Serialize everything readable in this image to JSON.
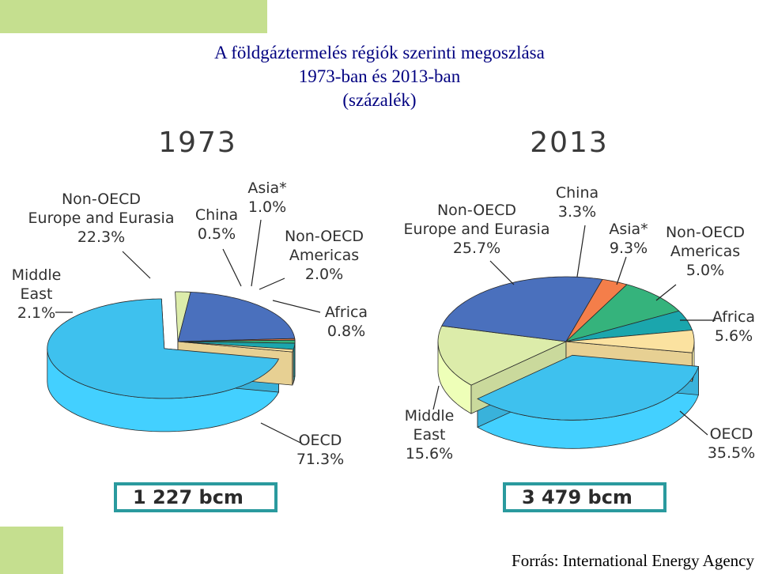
{
  "title": {
    "line1": "A földgáztermelés régiók szerinti megoszlása",
    "line2": "1973-ban és 2013-ban",
    "line3": "(százalék)"
  },
  "source": "Forrás: International Energy Agency",
  "colors": {
    "OECD": "#3ec1ee",
    "Middle East": "#dcecaa",
    "Non-OECD Europe and Eurasia": "#4a70bd",
    "China": "#f47e4a",
    "Asia*": "#35b37c",
    "Non-OECD Americas": "#1ba6ad",
    "Africa": "#fbe2a0"
  },
  "chart_data": [
    {
      "type": "pie",
      "year": "1973",
      "total": "1 227 bcm",
      "slices": [
        {
          "name": "OECD",
          "label": [
            "OECD"
          ],
          "value": 71.3,
          "value_label": "71.3%"
        },
        {
          "name": "Middle East",
          "label": [
            "Middle",
            "East"
          ],
          "value": 2.1,
          "value_label": "2.1%"
        },
        {
          "name": "Non-OECD Europe and Eurasia",
          "label": [
            "Non-OECD",
            "Europe and Eurasia"
          ],
          "value": 22.3,
          "value_label": "22.3%"
        },
        {
          "name": "China",
          "label": [
            "China"
          ],
          "value": 0.5,
          "value_label": "0.5%"
        },
        {
          "name": "Asia*",
          "label": [
            "Asia*"
          ],
          "value": 1.0,
          "value_label": "1.0%"
        },
        {
          "name": "Non-OECD Americas",
          "label": [
            "Non-OECD",
            "Americas"
          ],
          "value": 2.0,
          "value_label": "2.0%"
        },
        {
          "name": "Africa",
          "label": [
            "Africa"
          ],
          "value": 0.8,
          "value_label": "0.8%"
        }
      ]
    },
    {
      "type": "pie",
      "year": "2013",
      "total": "3 479 bcm",
      "slices": [
        {
          "name": "OECD",
          "label": [
            "OECD"
          ],
          "value": 35.5,
          "value_label": "35.5%"
        },
        {
          "name": "Middle East",
          "label": [
            "Middle",
            "East"
          ],
          "value": 15.6,
          "value_label": "15.6%"
        },
        {
          "name": "Non-OECD Europe and Eurasia",
          "label": [
            "Non-OECD",
            "Europe and Eurasia"
          ],
          "value": 25.7,
          "value_label": "25.7%"
        },
        {
          "name": "China",
          "label": [
            "China"
          ],
          "value": 3.3,
          "value_label": "3.3%"
        },
        {
          "name": "Asia*",
          "label": [
            "Asia*"
          ],
          "value": 9.3,
          "value_label": "9.3%"
        },
        {
          "name": "Non-OECD Americas",
          "label": [
            "Non-OECD",
            "Americas"
          ],
          "value": 5.0,
          "value_label": "5.0%"
        },
        {
          "name": "Africa",
          "label": [
            "Africa"
          ],
          "value": 5.6,
          "value_label": "5.6%"
        }
      ]
    }
  ]
}
